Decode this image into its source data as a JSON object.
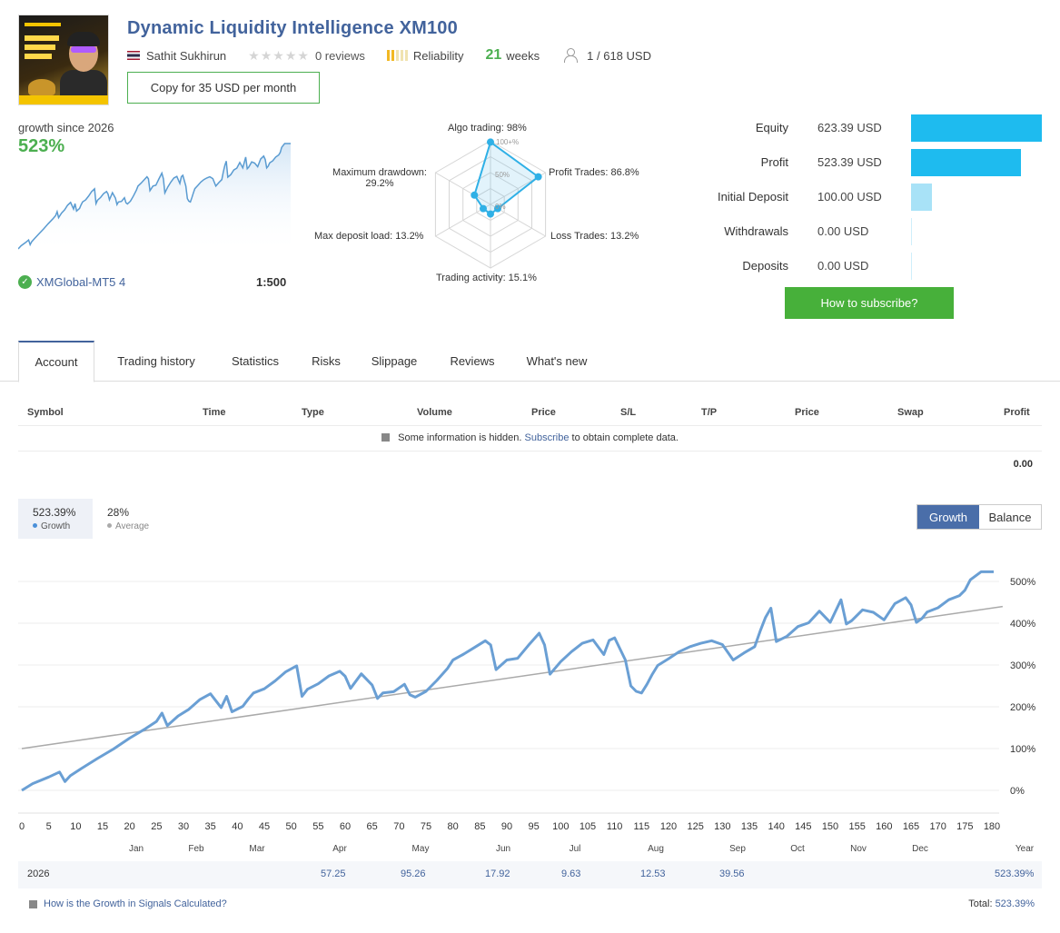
{
  "header": {
    "title": "Dynamic Liquidity Intelligence XM100",
    "author": "Sathit Sukhirun",
    "reviews": "0 reviews",
    "reliability_label": "Reliability",
    "weeks_num": "21",
    "weeks_label": "weeks",
    "subscribers": "1 / 618 USD",
    "copy_button": "Copy for 35 USD per month"
  },
  "growth": {
    "label": "growth since 2026",
    "value": "523%",
    "broker": "XMGlobal-MT5 4",
    "leverage": "1:500"
  },
  "radar": {
    "algo": "Algo trading: 98%",
    "profit_trades": "Profit Trades: 86.8%",
    "loss_trades": "Loss Trades: 13.2%",
    "activity": "Trading activity: 15.1%",
    "deposit_load": "Max deposit load: 13.2%",
    "drawdown_title": "Maximum drawdown:",
    "drawdown_value": "29.2%",
    "ring_100": "100+%",
    "ring_50": "50%",
    "ring_0": "0%",
    "values": [
      98,
      86.8,
      13.2,
      15.1,
      13.2,
      29.2
    ]
  },
  "summary": [
    {
      "label": "Equity",
      "value": "623.39 USD",
      "amount": 623.39
    },
    {
      "label": "Profit",
      "value": "523.39 USD",
      "amount": 523.39
    },
    {
      "label": "Initial Deposit",
      "value": "100.00 USD",
      "amount": 100.0
    },
    {
      "label": "Withdrawals",
      "value": "0.00 USD",
      "amount": 0
    },
    {
      "label": "Deposits",
      "value": "0.00 USD",
      "amount": 0
    }
  ],
  "subscribe_button": "How to subscribe?",
  "tabs": [
    "Account",
    "Trading history",
    "Statistics",
    "Risks",
    "Slippage",
    "Reviews",
    "What's new"
  ],
  "table": {
    "columns": [
      "Symbol",
      "Time",
      "Type",
      "Volume",
      "Price",
      "S/L",
      "T/P",
      "Price",
      "Swap",
      "Profit"
    ],
    "hidden_prefix": "Some information is hidden.",
    "hidden_link": "Subscribe",
    "hidden_suffix": "to obtain complete data.",
    "profit_total": "0.00"
  },
  "chart_header": {
    "growth_value": "523.39%",
    "growth_label": "Growth",
    "average_value": "28%",
    "average_label": "Average",
    "toggle_growth": "Growth",
    "toggle_balance": "Balance"
  },
  "chart_data": {
    "type": "line",
    "ylim": [
      -0.5,
      5.5
    ],
    "yticks": [
      "0%",
      "100%",
      "200%",
      "300%",
      "400%",
      "500%"
    ],
    "xticks": [
      "0",
      "5",
      "10",
      "15",
      "20",
      "25",
      "30",
      "35",
      "40",
      "45",
      "50",
      "55",
      "60",
      "65",
      "70",
      "75",
      "80",
      "85",
      "90",
      "95",
      "100",
      "105",
      "110",
      "115",
      "120",
      "125",
      "130",
      "135",
      "140",
      "145",
      "150",
      "155",
      "160",
      "165",
      "170",
      "175",
      "180"
    ],
    "months": [
      "Jan",
      "Feb",
      "Mar",
      "Apr",
      "May",
      "Jun",
      "Jul",
      "Aug",
      "Sep",
      "Oct",
      "Nov",
      "Dec",
      "Year"
    ],
    "series": [
      {
        "name": "Growth",
        "color": "#6a9fd4",
        "x": [
          0,
          2,
          5,
          7,
          8,
          9,
          11,
          14,
          17,
          20,
          23,
          25,
          26,
          27,
          29,
          31,
          33,
          35,
          37,
          38,
          39,
          41,
          42,
          43,
          45,
          47,
          49,
          51,
          52,
          53,
          55,
          57,
          59,
          60,
          61,
          63,
          65,
          66,
          67,
          69,
          71,
          72,
          73,
          75,
          77,
          79,
          80,
          82,
          84,
          86,
          87,
          88,
          90,
          92,
          94,
          96,
          97,
          98,
          100,
          102,
          104,
          106,
          108,
          109,
          110,
          112,
          113,
          114,
          115,
          116,
          117,
          118,
          120,
          122,
          124,
          126,
          128,
          130,
          132,
          134,
          136,
          137,
          138,
          139,
          140,
          142,
          144,
          146,
          148,
          150,
          152,
          153,
          154,
          156,
          158,
          160,
          162,
          164,
          165,
          166,
          167,
          168,
          170,
          172,
          174,
          175,
          176,
          178,
          180,
          182
        ],
        "y": [
          0.0,
          0.16,
          0.32,
          0.44,
          0.21,
          0.35,
          0.52,
          0.76,
          0.99,
          1.25,
          1.48,
          1.65,
          1.85,
          1.55,
          1.78,
          1.94,
          2.17,
          2.31,
          1.98,
          2.25,
          1.88,
          2.01,
          2.18,
          2.33,
          2.43,
          2.62,
          2.84,
          2.98,
          2.25,
          2.42,
          2.55,
          2.74,
          2.85,
          2.73,
          2.44,
          2.79,
          2.52,
          2.2,
          2.33,
          2.36,
          2.54,
          2.29,
          2.23,
          2.37,
          2.63,
          2.92,
          3.12,
          3.26,
          3.42,
          3.58,
          3.48,
          2.89,
          3.12,
          3.16,
          3.47,
          3.76,
          3.48,
          2.78,
          3.08,
          3.32,
          3.52,
          3.6,
          3.25,
          3.59,
          3.65,
          3.12,
          2.5,
          2.37,
          2.33,
          2.54,
          2.78,
          2.99,
          3.15,
          3.32,
          3.44,
          3.52,
          3.58,
          3.49,
          3.12,
          3.29,
          3.44,
          3.81,
          4.14,
          4.36,
          3.56,
          3.69,
          3.92,
          4.01,
          4.29,
          4.02,
          4.56,
          3.98,
          4.06,
          4.32,
          4.26,
          4.08,
          4.47,
          4.61,
          4.44,
          4.02,
          4.11,
          4.27,
          4.37,
          4.56,
          4.66,
          4.79,
          5.04,
          5.23,
          5.23,
          5.23
        ]
      },
      {
        "name": "Average",
        "color": "#aaaaaa",
        "x": [
          0,
          182
        ],
        "y": [
          1.0,
          4.4
        ]
      }
    ]
  },
  "year_row": {
    "year": "2026",
    "months": [
      "57.25",
      "95.26",
      "17.92",
      "9.63",
      "12.53",
      "39.56"
    ],
    "total": "523.39%"
  },
  "footer": {
    "how_link": "How is the Growth in Signals Calculated?",
    "total_label": "Total:",
    "total_value": "523.39%"
  }
}
